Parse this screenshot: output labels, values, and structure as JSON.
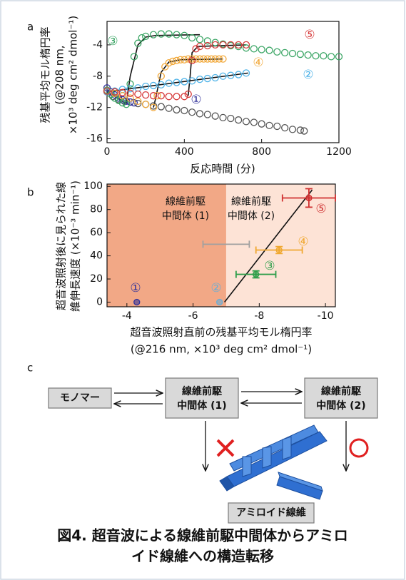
{
  "chart_data": [
    {
      "type": "scatter",
      "panel": "a",
      "ylabel": [
        "残基平均モル楕円率",
        "(@208 nm,",
        "×10³ deg cm² dmol⁻¹)"
      ],
      "xlabel": [
        "反応時間 (分)"
      ],
      "xlim": [
        0,
        1200
      ],
      "xticks": [
        0,
        400,
        800,
        1200
      ],
      "ylim": [
        -16.5,
        -1
      ],
      "yticks": [
        -16,
        -12,
        -8,
        -4
      ],
      "series": [
        {
          "color": "#555555",
          "x": [
            0,
            30,
            60,
            90,
            120,
            160,
            200,
            240,
            280,
            320,
            360,
            400,
            440,
            480,
            520,
            560,
            600,
            640,
            680,
            720,
            760,
            800,
            840,
            880,
            920,
            960,
            1000,
            1020
          ],
          "values": [
            -10,
            -10.6,
            -11,
            -11.2,
            -11.3,
            -11.5,
            -11.6,
            -11.8,
            -11.9,
            -12.1,
            -12.3,
            -12.4,
            -12.6,
            -12.8,
            -12.9,
            -13.1,
            -13.3,
            -13.4,
            -13.6,
            -13.8,
            -13.9,
            -14.1,
            -14.3,
            -14.4,
            -14.6,
            -14.8,
            -14.9,
            -15
          ]
        },
        {
          "name": "①",
          "color": "#33339a",
          "x": [
            0,
            20,
            40,
            60,
            80,
            100,
            120,
            140
          ],
          "values": [
            -9.5,
            -10,
            -10.4,
            -10.8,
            -11,
            -11.2,
            -11.3,
            -11.4
          ]
        },
        {
          "name": "②",
          "color": "#4fb3e8",
          "x": [
            0,
            40,
            80,
            120,
            160,
            200,
            240,
            280,
            320,
            360,
            400,
            440,
            480,
            520,
            560,
            600,
            640,
            680,
            720
          ],
          "values": [
            -10,
            -9.9,
            -9.7,
            -9.6,
            -9.5,
            -9.3,
            -9.2,
            -9.1,
            -8.9,
            -8.8,
            -8.7,
            -8.6,
            -8.4,
            -8.3,
            -8.2,
            -8,
            -7.9,
            -7.8,
            -7.6
          ]
        },
        {
          "name": "③",
          "color": "#3aa564",
          "x": [
            0,
            20,
            40,
            60,
            80,
            100,
            120,
            140,
            160,
            180,
            200,
            240,
            280,
            320,
            360,
            400,
            440,
            480,
            520,
            560,
            600,
            640,
            680,
            720,
            760,
            800,
            840,
            880,
            920,
            960,
            1000,
            1040,
            1080,
            1120,
            1160,
            1200
          ],
          "values": [
            -9.8,
            -10.3,
            -10.8,
            -11.1,
            -11.4,
            -11.6,
            -9,
            -5.5,
            -3.8,
            -3.1,
            -2.9,
            -2.7,
            -2.6,
            -2.6,
            -2.7,
            -2.8,
            -3.1,
            -3.3,
            -3.5,
            -3.7,
            -3.9,
            -4.1,
            -4.2,
            -4.4,
            -4.5,
            -4.6,
            -4.7,
            -4.9,
            -5,
            -5.1,
            -5.2,
            -5.3,
            -5.4,
            -5.4,
            -5.5,
            -5.5
          ]
        },
        {
          "name": "④",
          "color": "#f2a93b",
          "x": [
            0,
            40,
            80,
            120,
            160,
            200,
            240,
            260,
            280,
            300,
            320,
            340,
            360,
            380,
            400,
            420,
            440,
            460,
            480,
            500,
            520,
            540,
            560,
            580,
            600
          ],
          "values": [
            -9.9,
            -10.2,
            -10.5,
            -10.8,
            -11.2,
            -11.6,
            -12,
            -10.5,
            -8,
            -6.8,
            -6.3,
            -6.1,
            -6,
            -5.9,
            -5.9,
            -5.8,
            -5.8,
            -5.8,
            -5.8,
            -5.8,
            -5.8,
            -5.8,
            -5.8,
            -5.8,
            -5.8
          ]
        },
        {
          "name": "⑤",
          "color": "#d63a3a",
          "x": [
            0,
            40,
            80,
            120,
            160,
            200,
            240,
            280,
            320,
            360,
            400,
            420,
            440,
            460,
            480,
            520,
            560,
            600,
            640,
            680,
            720
          ],
          "values": [
            -9.9,
            -10,
            -10.1,
            -10.2,
            -10.3,
            -10.4,
            -10.5,
            -10.5,
            -10.6,
            -10.6,
            -10.6,
            -10.3,
            -6,
            -4.5,
            -4.2,
            -4.1,
            -4,
            -4,
            -4,
            -4,
            -4
          ]
        }
      ],
      "fits": [
        {
          "color": "#111111",
          "x": [
            0,
            100,
            120,
            160,
            200,
            250,
            480
          ],
          "values": [
            -10,
            -11.5,
            -8,
            -4,
            -3,
            -2.8,
            -2.7
          ]
        },
        {
          "color": "#111111",
          "x": [
            240,
            250,
            280,
            320,
            380,
            600
          ],
          "values": [
            -12,
            -11,
            -7.5,
            -6.2,
            -5.9,
            -5.8
          ]
        },
        {
          "color": "#111111",
          "x": [
            420,
            430,
            440,
            470,
            720
          ],
          "values": [
            -10.5,
            -8,
            -5,
            -4.2,
            -4
          ]
        },
        {
          "color": "#111111",
          "x": [
            0,
            730
          ],
          "values": [
            -10,
            -7.6
          ]
        }
      ]
    },
    {
      "type": "scatter",
      "panel": "b",
      "ylabel": [
        "超音波照射後に見られた線",
        "維伸長速度 (×10⁻³ min⁻¹)"
      ],
      "xlabel": [
        "超音波照射直前の残基平均モル楕円率",
        "(@216 nm, ×10³ deg cm² dmol⁻¹)"
      ],
      "xlim": [
        -3.4,
        -10.3
      ],
      "xticks": [
        -4,
        -6,
        -8,
        -10
      ],
      "ylim": [
        -4,
        102
      ],
      "yticks": [
        0,
        20,
        40,
        60,
        80,
        100
      ],
      "regions": [
        {
          "label": [
            "線維前駆",
            "中間体 (1)"
          ],
          "color": "#f2a886",
          "xrange": [
            -3.4,
            -7.0
          ]
        },
        {
          "label": [
            "線維前駆",
            "中間体 (2)"
          ],
          "color": "#fde3d6",
          "xrange": [
            -7.0,
            -10.3
          ]
        }
      ],
      "series": [
        {
          "name": "①",
          "color": "#33339a",
          "x": [
            -4.3
          ],
          "values": [
            0
          ],
          "xerr": [
            null
          ],
          "yerr": [
            null
          ]
        },
        {
          "name": "②",
          "color": "#6aaed6",
          "x": [
            -6.8
          ],
          "values": [
            0
          ],
          "xerr": [
            null
          ],
          "yerr": [
            null
          ]
        },
        {
          "name": "③",
          "color": "#2e9e4a",
          "x": [
            -7.9
          ],
          "values": [
            24
          ],
          "xerr": [
            0.6
          ],
          "yerr": [
            3
          ]
        },
        {
          "name": "④",
          "color": "#f0a830",
          "x": [
            -8.6
          ],
          "values": [
            45
          ],
          "xerr": [
            0.7
          ],
          "yerr": [
            3
          ]
        },
        {
          "name": "⑤",
          "color": "#d03030",
          "x": [
            -9.5
          ],
          "values": [
            90
          ],
          "xerr": [
            0.8
          ],
          "yerr": [
            8
          ]
        },
        {
          "color": "#a0a0a0",
          "marker": false,
          "x": [
            -7.0
          ],
          "values": [
            50
          ],
          "xerr": [
            0.7
          ],
          "yerr": [
            null
          ]
        }
      ],
      "fits": [
        {
          "color": "#111111",
          "x": [
            -6.95,
            -9.6
          ],
          "values": [
            0,
            97
          ]
        }
      ]
    }
  ],
  "diagram": {
    "panel": "c",
    "nodes": [
      {
        "label": [
          "モノマー"
        ]
      },
      {
        "label": [
          "線維前駆",
          "中間体 (1)"
        ]
      },
      {
        "label": [
          "線維前駆",
          "中間体 (2)"
        ]
      },
      {
        "label": [
          "アミロイド線維"
        ]
      }
    ]
  },
  "caption": [
    "図4. 超音波による線維前駆中間体からアミロ",
    "イド線維への構造転移"
  ]
}
